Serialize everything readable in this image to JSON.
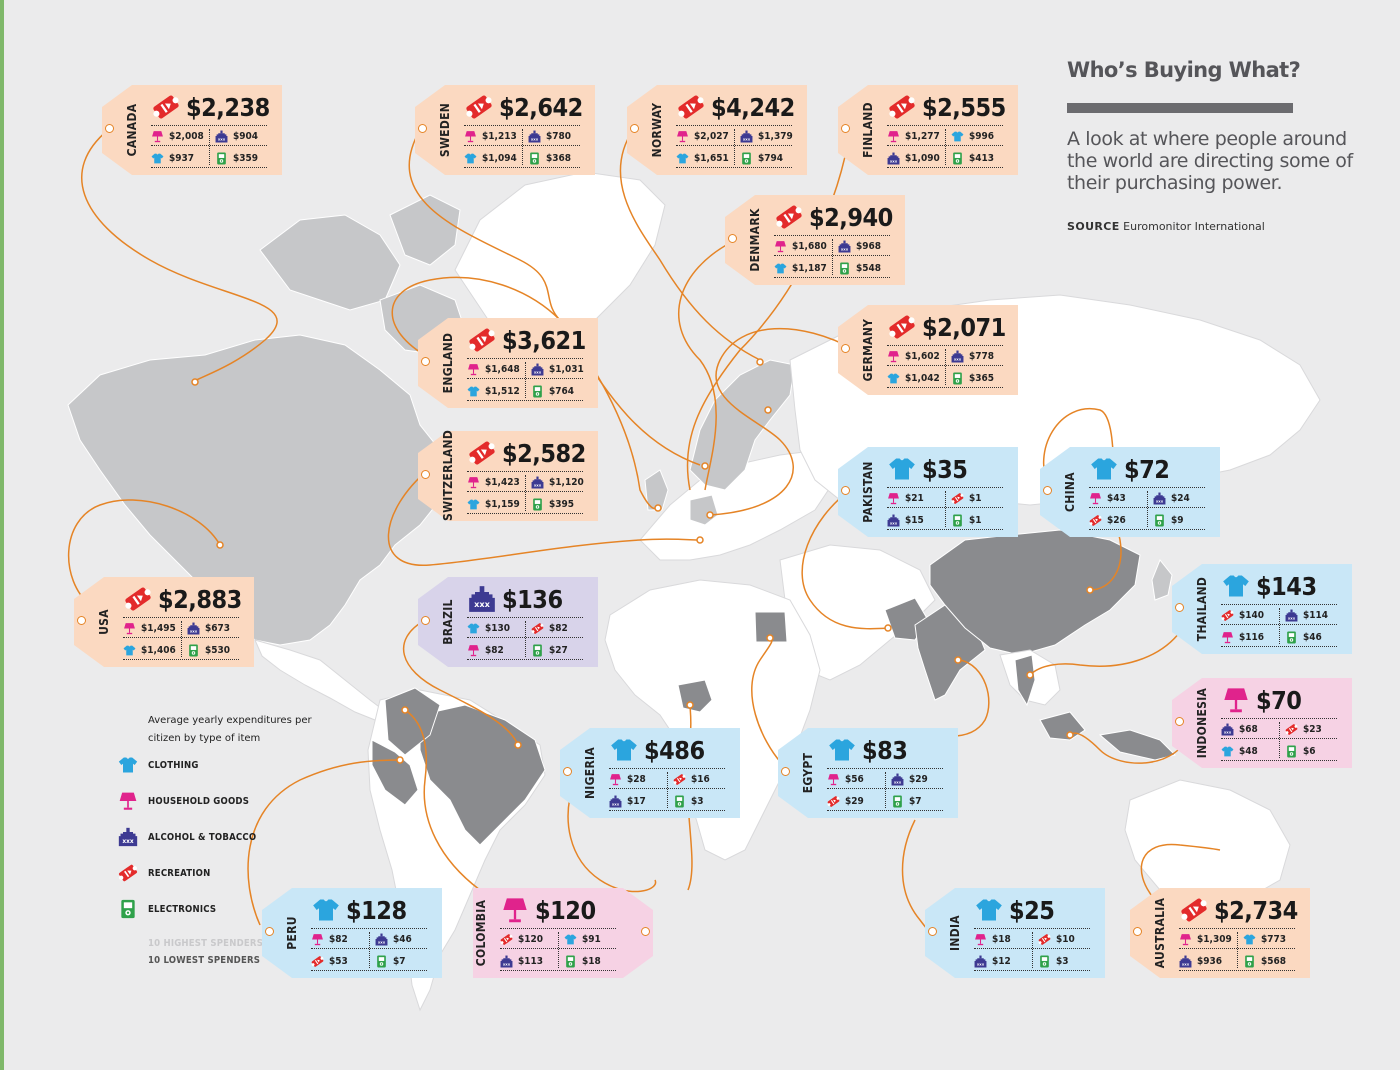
{
  "header": {
    "title": "Who’s Buying What?",
    "subtitle": "A look at where people around the world are directing some of their purchasing power.",
    "source_label": "SOURCE",
    "source_value": "Euromonitor International"
  },
  "legend": {
    "heading": "Average yearly expenditures per citizen by type of item",
    "items": [
      {
        "icon": "clothing-icon",
        "label": "CLOTHING"
      },
      {
        "icon": "household-goods-icon",
        "label": "HOUSEHOLD GOODS"
      },
      {
        "icon": "alcohol-tobacco-icon",
        "label": "ALCOHOL & TOBACCO"
      },
      {
        "icon": "recreation-icon",
        "label": "RECREATION"
      },
      {
        "icon": "electronics-icon",
        "label": "ELECTRONICS"
      }
    ],
    "highest_label": "10 HIGHEST SPENDERS",
    "lowest_label": "10 LOWEST SPENDERS"
  },
  "colors": {
    "highest_tag": "#fbd9c1",
    "lowest_tag": "#c9e7f7",
    "household_led_tag": "#f6d2e4",
    "alcohol_led_tag": "#d8d3ea",
    "clothing": "#2ba5de",
    "household": "#e0238c",
    "alcohol": "#3d3a92",
    "recreation": "#e32b2b",
    "electronics": "#2fa14a",
    "connector": "#e58426"
  },
  "tags": [
    {
      "country": "CANADA",
      "group": "highest",
      "main_icon": "recreation-icon",
      "total": "$2,238",
      "items": [
        {
          "icon": "household-goods-icon",
          "value": "$2,008"
        },
        {
          "icon": "alcohol-tobacco-icon",
          "value": "$904"
        },
        {
          "icon": "clothing-icon",
          "value": "$937"
        },
        {
          "icon": "electronics-icon",
          "value": "$359"
        }
      ]
    },
    {
      "country": "SWEDEN",
      "group": "highest",
      "main_icon": "recreation-icon",
      "total": "$2,642",
      "items": [
        {
          "icon": "household-goods-icon",
          "value": "$1,213"
        },
        {
          "icon": "alcohol-tobacco-icon",
          "value": "$780"
        },
        {
          "icon": "clothing-icon",
          "value": "$1,094"
        },
        {
          "icon": "electronics-icon",
          "value": "$368"
        }
      ]
    },
    {
      "country": "NORWAY",
      "group": "highest",
      "main_icon": "recreation-icon",
      "total": "$4,242",
      "items": [
        {
          "icon": "household-goods-icon",
          "value": "$2,027"
        },
        {
          "icon": "alcohol-tobacco-icon",
          "value": "$1,379"
        },
        {
          "icon": "clothing-icon",
          "value": "$1,651"
        },
        {
          "icon": "electronics-icon",
          "value": "$794"
        }
      ]
    },
    {
      "country": "FINLAND",
      "group": "highest",
      "main_icon": "recreation-icon",
      "total": "$2,555",
      "items": [
        {
          "icon": "household-goods-icon",
          "value": "$1,277"
        },
        {
          "icon": "clothing-icon",
          "value": "$996"
        },
        {
          "icon": "alcohol-tobacco-icon",
          "value": "$1,090"
        },
        {
          "icon": "electronics-icon",
          "value": "$413"
        }
      ]
    },
    {
      "country": "DENMARK",
      "group": "highest",
      "main_icon": "recreation-icon",
      "total": "$2,940",
      "items": [
        {
          "icon": "household-goods-icon",
          "value": "$1,680"
        },
        {
          "icon": "alcohol-tobacco-icon",
          "value": "$968"
        },
        {
          "icon": "clothing-icon",
          "value": "$1,187"
        },
        {
          "icon": "electronics-icon",
          "value": "$548"
        }
      ]
    },
    {
      "country": "GERMANY",
      "group": "highest",
      "main_icon": "recreation-icon",
      "total": "$2,071",
      "items": [
        {
          "icon": "household-goods-icon",
          "value": "$1,602"
        },
        {
          "icon": "alcohol-tobacco-icon",
          "value": "$778"
        },
        {
          "icon": "clothing-icon",
          "value": "$1,042"
        },
        {
          "icon": "electronics-icon",
          "value": "$365"
        }
      ]
    },
    {
      "country": "ENGLAND",
      "group": "highest",
      "main_icon": "recreation-icon",
      "total": "$3,621",
      "items": [
        {
          "icon": "household-goods-icon",
          "value": "$1,648"
        },
        {
          "icon": "alcohol-tobacco-icon",
          "value": "$1,031"
        },
        {
          "icon": "clothing-icon",
          "value": "$1,512"
        },
        {
          "icon": "electronics-icon",
          "value": "$764"
        }
      ]
    },
    {
      "country": "SWITZERLAND",
      "group": "highest",
      "main_icon": "recreation-icon",
      "total": "$2,582",
      "items": [
        {
          "icon": "household-goods-icon",
          "value": "$1,423"
        },
        {
          "icon": "alcohol-tobacco-icon",
          "value": "$1,120"
        },
        {
          "icon": "clothing-icon",
          "value": "$1,159"
        },
        {
          "icon": "electronics-icon",
          "value": "$395"
        }
      ]
    },
    {
      "country": "USA",
      "group": "highest",
      "main_icon": "recreation-icon",
      "total": "$2,883",
      "items": [
        {
          "icon": "household-goods-icon",
          "value": "$1,495"
        },
        {
          "icon": "alcohol-tobacco-icon",
          "value": "$673"
        },
        {
          "icon": "clothing-icon",
          "value": "$1,406"
        },
        {
          "icon": "electronics-icon",
          "value": "$530"
        }
      ]
    },
    {
      "country": "BRAZIL",
      "group": "lowest",
      "main_icon": "alcohol-tobacco-icon",
      "total": "$136",
      "items": [
        {
          "icon": "clothing-icon",
          "value": "$130"
        },
        {
          "icon": "recreation-icon",
          "value": "$82"
        },
        {
          "icon": "household-goods-icon",
          "value": "$82"
        },
        {
          "icon": "electronics-icon",
          "value": "$27"
        }
      ]
    },
    {
      "country": "PAKISTAN",
      "group": "lowest",
      "main_icon": "clothing-icon",
      "total": "$35",
      "items": [
        {
          "icon": "household-goods-icon",
          "value": "$21"
        },
        {
          "icon": "recreation-icon",
          "value": "$1"
        },
        {
          "icon": "alcohol-tobacco-icon",
          "value": "$15"
        },
        {
          "icon": "electronics-icon",
          "value": "$1"
        }
      ]
    },
    {
      "country": "CHINA",
      "group": "lowest",
      "main_icon": "clothing-icon",
      "total": "$72",
      "items": [
        {
          "icon": "household-goods-icon",
          "value": "$43"
        },
        {
          "icon": "alcohol-tobacco-icon",
          "value": "$24"
        },
        {
          "icon": "recreation-icon",
          "value": "$26"
        },
        {
          "icon": "electronics-icon",
          "value": "$9"
        }
      ]
    },
    {
      "country": "THAILAND",
      "group": "lowest",
      "main_icon": "clothing-icon",
      "total": "$143",
      "items": [
        {
          "icon": "recreation-icon",
          "value": "$140"
        },
        {
          "icon": "alcohol-tobacco-icon",
          "value": "$114"
        },
        {
          "icon": "household-goods-icon",
          "value": "$116"
        },
        {
          "icon": "electronics-icon",
          "value": "$46"
        }
      ]
    },
    {
      "country": "INDONESIA",
      "group": "lowest",
      "main_icon": "household-goods-icon",
      "total": "$70",
      "items": [
        {
          "icon": "alcohol-tobacco-icon",
          "value": "$68"
        },
        {
          "icon": "recreation-icon",
          "value": "$23"
        },
        {
          "icon": "clothing-icon",
          "value": "$48"
        },
        {
          "icon": "electronics-icon",
          "value": "$6"
        }
      ]
    },
    {
      "country": "NIGERIA",
      "group": "lowest",
      "main_icon": "clothing-icon",
      "total": "$486",
      "items": [
        {
          "icon": "household-goods-icon",
          "value": "$28"
        },
        {
          "icon": "recreation-icon",
          "value": "$16"
        },
        {
          "icon": "alcohol-tobacco-icon",
          "value": "$17"
        },
        {
          "icon": "electronics-icon",
          "value": "$3"
        }
      ]
    },
    {
      "country": "EGYPT",
      "group": "lowest",
      "main_icon": "clothing-icon",
      "total": "$83",
      "items": [
        {
          "icon": "household-goods-icon",
          "value": "$56"
        },
        {
          "icon": "alcohol-tobacco-icon",
          "value": "$29"
        },
        {
          "icon": "recreation-icon",
          "value": "$29"
        },
        {
          "icon": "electronics-icon",
          "value": "$7"
        }
      ]
    },
    {
      "country": "PERU",
      "group": "lowest",
      "main_icon": "clothing-icon",
      "total": "$128",
      "items": [
        {
          "icon": "household-goods-icon",
          "value": "$82"
        },
        {
          "icon": "alcohol-tobacco-icon",
          "value": "$46"
        },
        {
          "icon": "recreation-icon",
          "value": "$53"
        },
        {
          "icon": "electronics-icon",
          "value": "$7"
        }
      ]
    },
    {
      "country": "COLOMBIA",
      "group": "lowest",
      "main_icon": "household-goods-icon",
      "total": "$120",
      "items": [
        {
          "icon": "recreation-icon",
          "value": "$120"
        },
        {
          "icon": "clothing-icon",
          "value": "$91"
        },
        {
          "icon": "alcohol-tobacco-icon",
          "value": "$113"
        },
        {
          "icon": "electronics-icon",
          "value": "$18"
        }
      ]
    },
    {
      "country": "INDIA",
      "group": "lowest",
      "main_icon": "clothing-icon",
      "total": "$25",
      "items": [
        {
          "icon": "household-goods-icon",
          "value": "$18"
        },
        {
          "icon": "recreation-icon",
          "value": "$10"
        },
        {
          "icon": "alcohol-tobacco-icon",
          "value": "$12"
        },
        {
          "icon": "electronics-icon",
          "value": "$3"
        }
      ]
    },
    {
      "country": "AUSTRALIA",
      "group": "highest",
      "main_icon": "recreation-icon",
      "total": "$2,734",
      "items": [
        {
          "icon": "household-goods-icon",
          "value": "$1,309"
        },
        {
          "icon": "clothing-icon",
          "value": "$773"
        },
        {
          "icon": "alcohol-tobacco-icon",
          "value": "$936"
        },
        {
          "icon": "electronics-icon",
          "value": "$568"
        }
      ]
    }
  ]
}
